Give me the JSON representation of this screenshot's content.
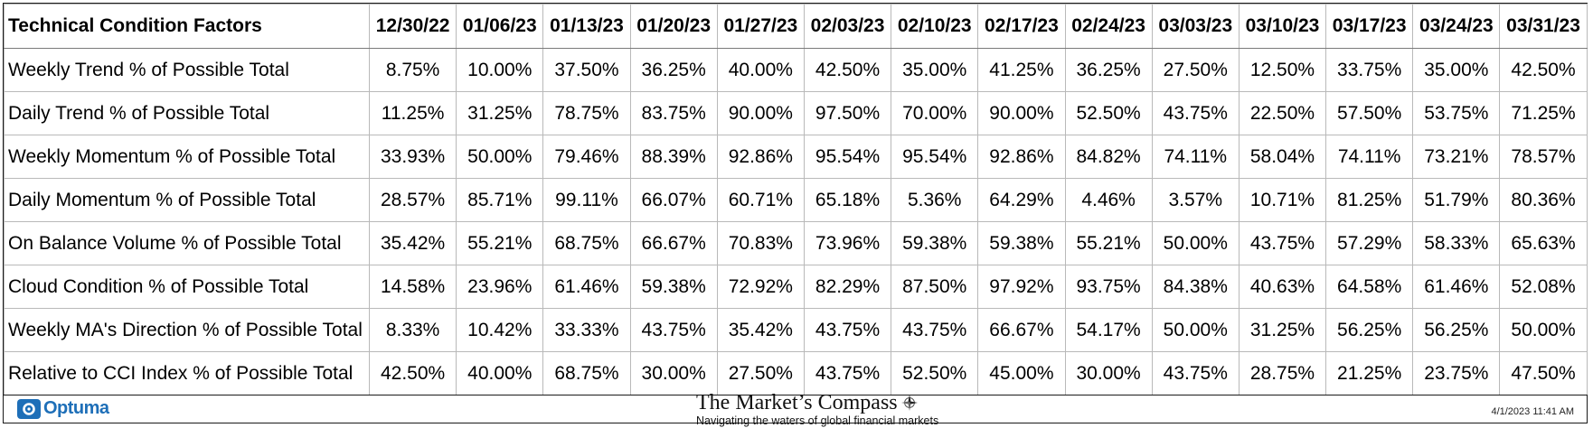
{
  "chart_data": {
    "type": "table",
    "header_label": "Technical Condition Factors",
    "columns": [
      "12/30/22",
      "01/06/23",
      "01/13/23",
      "01/20/23",
      "01/27/23",
      "02/03/23",
      "02/10/23",
      "02/17/23",
      "02/24/23",
      "03/03/23",
      "03/10/23",
      "03/17/23",
      "03/24/23",
      "03/31/23"
    ],
    "rows": [
      {
        "label": "Weekly Trend % of Possible Total",
        "values": [
          "8.75%",
          "10.00%",
          "37.50%",
          "36.25%",
          "40.00%",
          "42.50%",
          "35.00%",
          "41.25%",
          "36.25%",
          "27.50%",
          "12.50%",
          "33.75%",
          "35.00%",
          "42.50%"
        ]
      },
      {
        "label": "Daily Trend % of Possible Total",
        "values": [
          "11.25%",
          "31.25%",
          "78.75%",
          "83.75%",
          "90.00%",
          "97.50%",
          "70.00%",
          "90.00%",
          "52.50%",
          "43.75%",
          "22.50%",
          "57.50%",
          "53.75%",
          "71.25%"
        ]
      },
      {
        "label": "Weekly Momentum % of Possible Total",
        "values": [
          "33.93%",
          "50.00%",
          "79.46%",
          "88.39%",
          "92.86%",
          "95.54%",
          "95.54%",
          "92.86%",
          "84.82%",
          "74.11%",
          "58.04%",
          "74.11%",
          "73.21%",
          "78.57%"
        ]
      },
      {
        "label": "Daily Momentum % of Possible Total",
        "values": [
          "28.57%",
          "85.71%",
          "99.11%",
          "66.07%",
          "60.71%",
          "65.18%",
          "5.36%",
          "64.29%",
          "4.46%",
          "3.57%",
          "10.71%",
          "81.25%",
          "51.79%",
          "80.36%"
        ]
      },
      {
        "label": "On Balance Volume % of Possible Total",
        "values": [
          "35.42%",
          "55.21%",
          "68.75%",
          "66.67%",
          "70.83%",
          "73.96%",
          "59.38%",
          "59.38%",
          "55.21%",
          "50.00%",
          "43.75%",
          "57.29%",
          "58.33%",
          "65.63%"
        ]
      },
      {
        "label": "Cloud Condition % of Possible Total",
        "values": [
          "14.58%",
          "23.96%",
          "61.46%",
          "59.38%",
          "72.92%",
          "82.29%",
          "87.50%",
          "97.92%",
          "93.75%",
          "84.38%",
          "40.63%",
          "64.58%",
          "61.46%",
          "52.08%"
        ]
      },
      {
        "label": "Weekly MA's Direction % of Possible Total",
        "values": [
          "8.33%",
          "10.42%",
          "33.33%",
          "43.75%",
          "35.42%",
          "43.75%",
          "43.75%",
          "66.67%",
          "54.17%",
          "50.00%",
          "31.25%",
          "56.25%",
          "56.25%",
          "50.00%"
        ]
      },
      {
        "label": "Relative to CCI Index % of Possible Total",
        "values": [
          "42.50%",
          "40.00%",
          "68.75%",
          "30.00%",
          "27.50%",
          "43.75%",
          "52.50%",
          "45.00%",
          "30.00%",
          "43.75%",
          "28.75%",
          "21.25%",
          "23.75%",
          "47.50%"
        ]
      }
    ]
  },
  "footer": {
    "logo_text": "Optuma",
    "logo_color": "#1e6fb8",
    "brand_title": "The Market’s Compass",
    "brand_subtitle": "Navigating the waters of global financial markets",
    "timestamp": "4/1/2023 11:41 AM",
    "icons": {
      "logo": "optuma-logo-icon",
      "brand": "compass-rose-icon"
    }
  }
}
